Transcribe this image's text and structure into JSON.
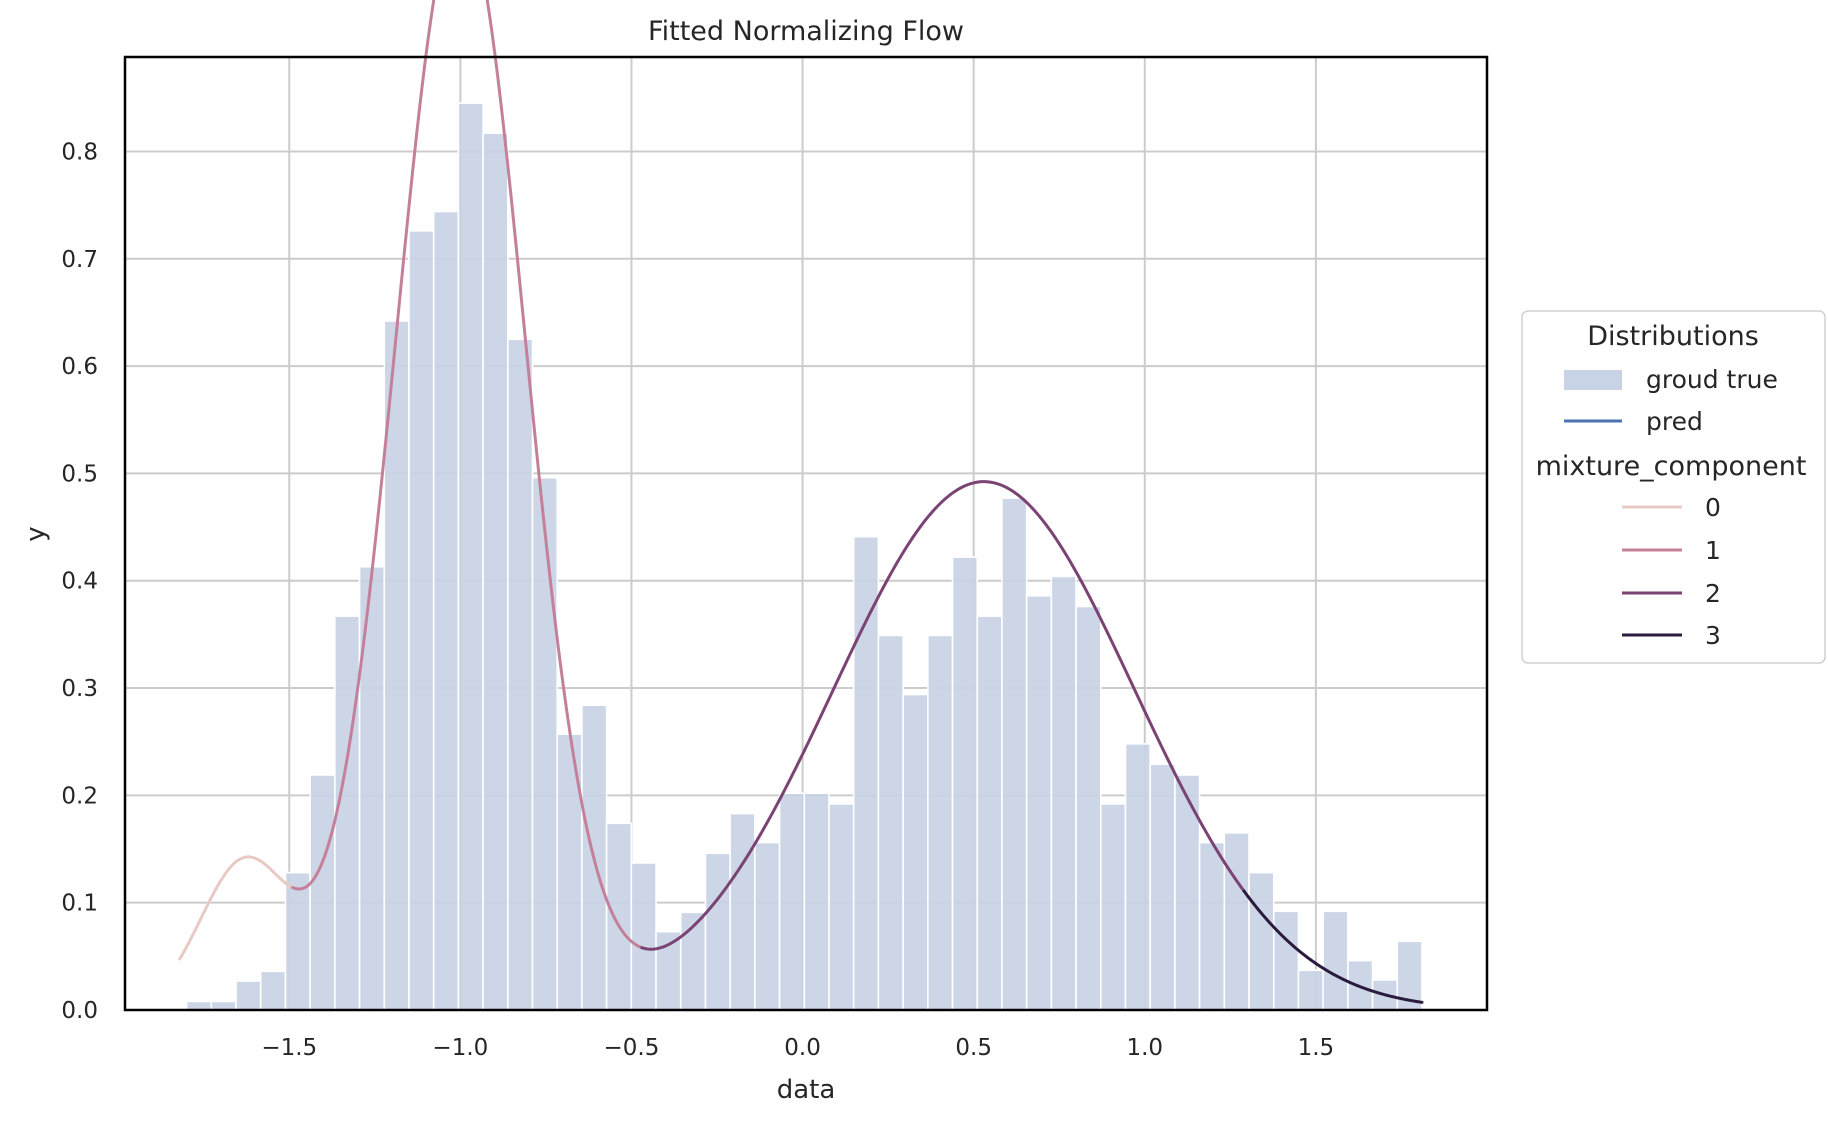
{
  "chart_data": {
    "type": "bar",
    "title": "Fitted Normalizing Flow",
    "xlabel": "data",
    "ylabel": "y",
    "xlim": [
      -1.98,
      2.0
    ],
    "ylim": [
      0.0,
      0.888
    ],
    "xticks": [
      -1.5,
      -1.0,
      -0.5,
      0.0,
      0.5,
      1.0,
      1.5
    ],
    "xtick_labels": [
      "−1.5",
      "−1.0",
      "−0.5",
      "0.0",
      "0.5",
      "1.0",
      "1.5"
    ],
    "yticks": [
      0.0,
      0.1,
      0.2,
      0.3,
      0.4,
      0.5,
      0.6,
      0.7,
      0.8
    ],
    "ytick_labels": [
      "0.0",
      "0.1",
      "0.2",
      "0.3",
      "0.4",
      "0.5",
      "0.6",
      "0.7",
      "0.8"
    ],
    "grid": true,
    "histogram": {
      "name": "groud true",
      "color": "#c8d3e5",
      "bin_width": 0.0722,
      "bin_start": -1.8,
      "heights": [
        0.008,
        0.008,
        0.027,
        0.036,
        0.128,
        0.219,
        0.367,
        0.413,
        0.642,
        0.726,
        0.744,
        0.845,
        0.817,
        0.625,
        0.496,
        0.257,
        0.284,
        0.174,
        0.137,
        0.073,
        0.091,
        0.146,
        0.183,
        0.156,
        0.202,
        0.202,
        0.192,
        0.441,
        0.349,
        0.294,
        0.349,
        0.422,
        0.367,
        0.477,
        0.386,
        0.404,
        0.376,
        0.192,
        0.248,
        0.229,
        0.219,
        0.156,
        0.165,
        0.128,
        0.092,
        0.037,
        0.092,
        0.046,
        0.028,
        0.064
      ]
    },
    "pred_curve": {
      "name": "pred",
      "x_range": [
        -1.82,
        1.81
      ],
      "components": [
        {
          "weight": 0.045,
          "mean": -1.63,
          "std": 0.13
        },
        {
          "weight": 0.487,
          "mean": -1.0,
          "std": 0.19
        },
        {
          "weight": 0.543,
          "mean": 0.53,
          "std": 0.44
        }
      ],
      "segments": [
        {
          "component": "0",
          "x": [
            -1.82,
            -1.49
          ],
          "color": "#e8c9c4"
        },
        {
          "component": "1",
          "x": [
            -1.49,
            -0.47
          ],
          "color": "#c4809b"
        },
        {
          "component": "2",
          "x": [
            -0.47,
            1.29
          ],
          "color": "#7a4373"
        },
        {
          "component": "3",
          "x": [
            1.29,
            1.81
          ],
          "color": "#2a1b3e"
        }
      ]
    },
    "legend": {
      "placement": "right, outside",
      "title": "Distributions",
      "entries": [
        {
          "label": "groud true",
          "kind": "patch",
          "color": "#c8d3e5"
        },
        {
          "label": "pred",
          "kind": "line",
          "color": "#4c72b0"
        }
      ],
      "subtitle": "mixture_component",
      "components": [
        {
          "label": "0",
          "color": "#e8c9c4"
        },
        {
          "label": "1",
          "color": "#c4809b"
        },
        {
          "label": "2",
          "color": "#7a4373"
        },
        {
          "label": "3",
          "color": "#2a1b3e"
        }
      ]
    }
  }
}
